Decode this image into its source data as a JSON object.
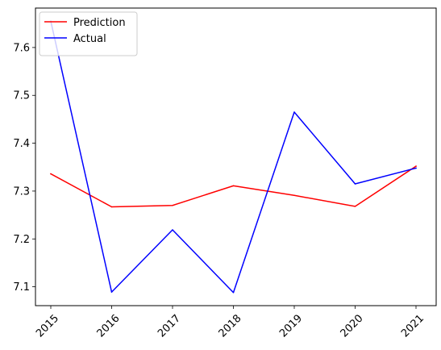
{
  "chart_data": {
    "type": "line",
    "x": [
      "2015",
      "2016",
      "2017",
      "2018",
      "2019",
      "2020",
      "2021"
    ],
    "series": [
      {
        "name": "Prediction",
        "color": "#ff0000",
        "values": [
          7.336,
          7.267,
          7.27,
          7.311,
          7.291,
          7.268,
          7.352
        ]
      },
      {
        "name": "Actual",
        "color": "#0000ff",
        "values": [
          7.655,
          7.089,
          7.219,
          7.088,
          7.465,
          7.315,
          7.348
        ]
      }
    ],
    "y_ticks": [
      "7.1",
      "7.2",
      "7.3",
      "7.4",
      "7.5",
      "7.6"
    ],
    "ylim": [
      7.0606,
      7.6824
    ],
    "grid": false,
    "legend_position": "upper-left",
    "title": "",
    "xlabel": "",
    "ylabel": ""
  }
}
